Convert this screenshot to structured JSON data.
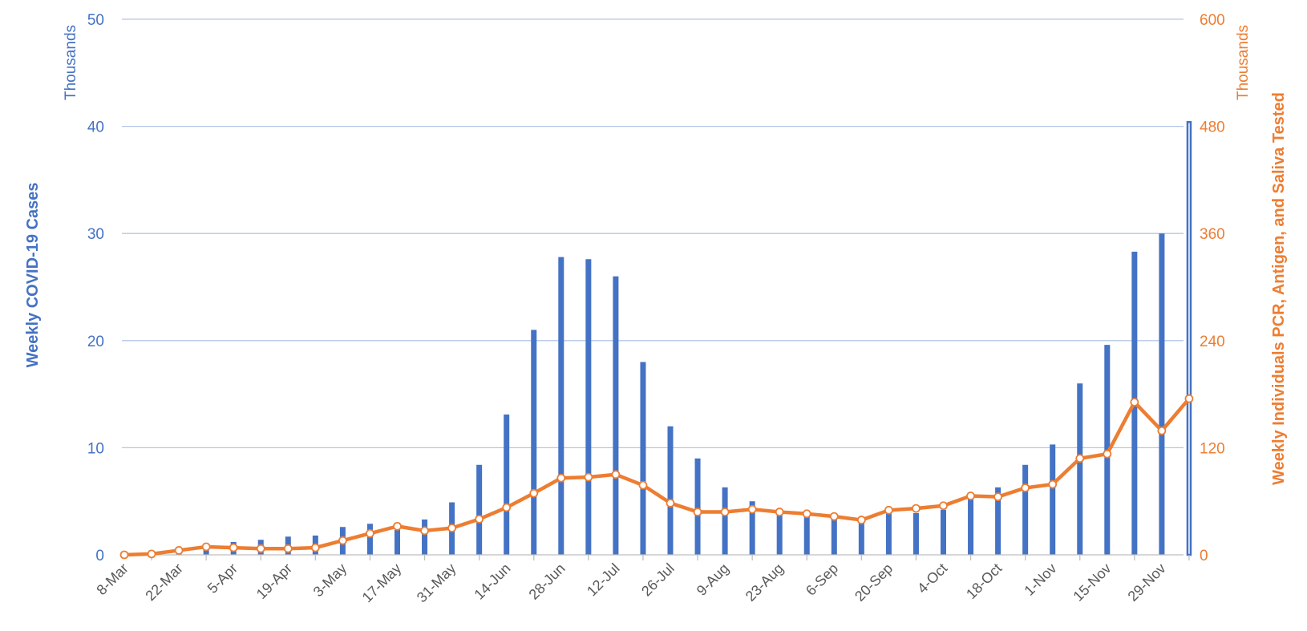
{
  "chart_data": {
    "type": "bar+line",
    "title": "",
    "colors": {
      "bars": "#4472C4",
      "line": "#ED7D31",
      "grid": "#B4C7E7",
      "left_axis_text": "#4472C4",
      "right_axis_text": "#ED7D31",
      "x_tick_text": "#595959"
    },
    "grid": true,
    "x_axis": {
      "tick_labels": [
        "8-Mar",
        "22-Mar",
        "5-Apr",
        "19-Apr",
        "3-May",
        "17-May",
        "31-May",
        "14-Jun",
        "28-Jun",
        "12-Jul",
        "26-Jul",
        "9-Aug",
        "23-Aug",
        "6-Sep",
        "20-Sep",
        "4-Oct",
        "18-Oct",
        "1-Nov",
        "15-Nov",
        "29-Nov"
      ]
    },
    "y_left": {
      "label": "Weekly COVID-19 Cases",
      "unit": "Thousands",
      "range": [
        0,
        50
      ],
      "ticks": [
        "0",
        "10",
        "20",
        "30",
        "40",
        "50"
      ]
    },
    "y_right": {
      "label": "Weekly Individuals PCR, Antigen, and Saliva Tested",
      "unit": "Thousands",
      "range": [
        0,
        600
      ],
      "ticks": [
        "0",
        "120",
        "240",
        "360",
        "480",
        "600"
      ]
    },
    "weeks": [
      "8-Mar",
      "15-Mar",
      "22-Mar",
      "29-Mar",
      "5-Apr",
      "12-Apr",
      "19-Apr",
      "26-Apr",
      "3-May",
      "10-May",
      "17-May",
      "24-May",
      "31-May",
      "7-Jun",
      "14-Jun",
      "21-Jun",
      "28-Jun",
      "5-Jul",
      "12-Jul",
      "19-Jul",
      "26-Jul",
      "2-Aug",
      "9-Aug",
      "16-Aug",
      "23-Aug",
      "30-Aug",
      "6-Sep",
      "13-Sep",
      "20-Sep",
      "27-Sep",
      "4-Oct",
      "11-Oct",
      "18-Oct",
      "25-Oct",
      "1-Nov",
      "8-Nov",
      "15-Nov",
      "22-Nov",
      "29-Nov",
      "6-Dec"
    ],
    "series": [
      {
        "type": "bar",
        "axis": "left",
        "values": [
          0.0,
          0.1,
          0.4,
          1.0,
          1.2,
          1.4,
          1.7,
          1.8,
          2.6,
          2.9,
          3.0,
          3.3,
          4.9,
          8.4,
          13.1,
          21.0,
          27.8,
          27.6,
          26.0,
          18.0,
          12.0,
          9.0,
          6.3,
          5.0,
          3.9,
          3.8,
          3.6,
          3.2,
          4.3,
          3.9,
          4.2,
          5.2,
          6.3,
          8.4,
          10.3,
          16.0,
          19.6,
          28.3,
          30.0,
          40.4
        ]
      },
      {
        "type": "line",
        "axis": "right",
        "values": [
          0,
          1,
          5,
          9,
          8,
          7,
          7,
          8,
          16,
          24,
          32,
          27,
          30,
          40,
          53,
          69,
          86,
          87,
          90,
          78,
          58,
          48,
          48,
          51,
          48,
          46,
          43,
          39,
          50,
          52,
          55,
          66,
          65,
          75,
          79,
          108,
          113,
          171,
          139,
          175
        ]
      }
    ]
  }
}
